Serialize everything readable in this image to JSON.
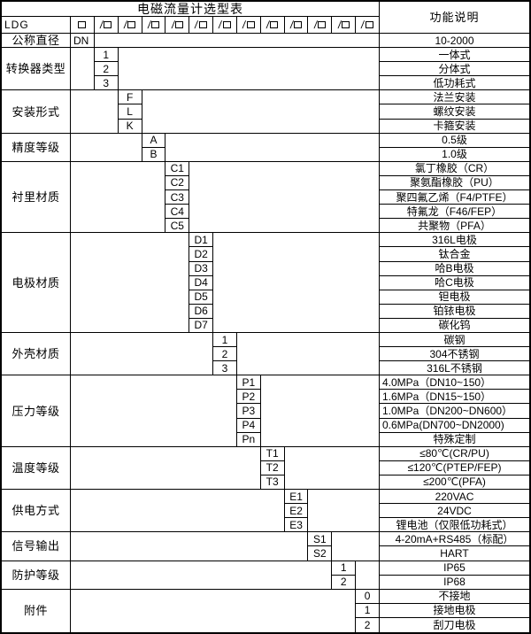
{
  "colors": {
    "border": "#000000",
    "background": "#ffffff",
    "text": "#000000"
  },
  "table": {
    "title": "电磁流量计选型表",
    "function_header": "功能说明",
    "model_prefix": "LDG",
    "selection_row": {
      "first_cell_icon": "blank-box-icon",
      "slash_cell_icon": "slash-box-icon",
      "slash_cell_count": 12
    },
    "groups": [
      {
        "label": "公称直径",
        "codes": [
          "DN"
        ],
        "code_align": "left",
        "descs": [
          "10-2000"
        ]
      },
      {
        "label": "转换器类型",
        "codes": [
          "1",
          "2",
          "3"
        ],
        "descs": [
          "一体式",
          "分体式",
          "低功耗式"
        ]
      },
      {
        "label": "安装形式",
        "codes": [
          "F",
          "L",
          "K"
        ],
        "descs": [
          "法兰安装",
          "螺纹安装",
          "卡箍安装"
        ]
      },
      {
        "label": "精度等级",
        "codes": [
          "A",
          "B"
        ],
        "descs": [
          "0.5级",
          "1.0级"
        ]
      },
      {
        "label": "衬里材质",
        "codes": [
          "C1",
          "C2",
          "C3",
          "C4",
          "C5"
        ],
        "descs": [
          "氯丁橡胶（CR）",
          "聚氨酯橡胶（PU）",
          "聚四氟乙烯（F4/PTFE）",
          "特氟龙（F46/FEP）",
          "共聚物（PFA）"
        ]
      },
      {
        "label": "电极材质",
        "codes": [
          "D1",
          "D2",
          "D3",
          "D4",
          "D5",
          "D6",
          "D7"
        ],
        "descs": [
          "316L电极",
          "钛合金",
          "哈B电极",
          "哈C电极",
          "钽电极",
          "铂铱电极",
          "碳化钨"
        ]
      },
      {
        "label": "外壳材质",
        "codes": [
          "1",
          "2",
          "3"
        ],
        "descs": [
          "碳钢",
          "304不锈钢",
          "316L不锈钢"
        ]
      },
      {
        "label": "压力等级",
        "codes": [
          "P1",
          "P2",
          "P3",
          "P4",
          "Pn"
        ],
        "descs": [
          "4.0MPa（DN10~150）",
          "1.6MPa（DN15~150）",
          "1.0MPa（DN200~DN600）",
          "0.6MPa(DN700~DN2000)",
          "特殊定制"
        ],
        "desc_aligns": [
          "left",
          "left",
          "left",
          "left",
          "center"
        ]
      },
      {
        "label": "温度等级",
        "codes": [
          "T1",
          "T2",
          "T3"
        ],
        "descs": [
          "≤80℃(CR/PU)",
          "≤120℃(PTEP/FEP)",
          "≤200℃(PFA)"
        ]
      },
      {
        "label": "供电方式",
        "codes": [
          "E1",
          "E2",
          "E3"
        ],
        "descs": [
          "220VAC",
          "24VDC",
          "锂电池（仅限低功耗式）"
        ]
      },
      {
        "label": "信号输出",
        "codes": [
          "S1",
          "S2"
        ],
        "descs": [
          "4-20mA+RS485（标配）",
          "HART"
        ]
      },
      {
        "label": "防护等级",
        "codes": [
          "1",
          "2"
        ],
        "descs": [
          "IP65",
          "IP68"
        ]
      },
      {
        "label": "附件",
        "codes": [
          "0",
          "1",
          "2"
        ],
        "descs": [
          "不接地",
          "接地电极",
          "刮刀电极"
        ]
      }
    ]
  }
}
